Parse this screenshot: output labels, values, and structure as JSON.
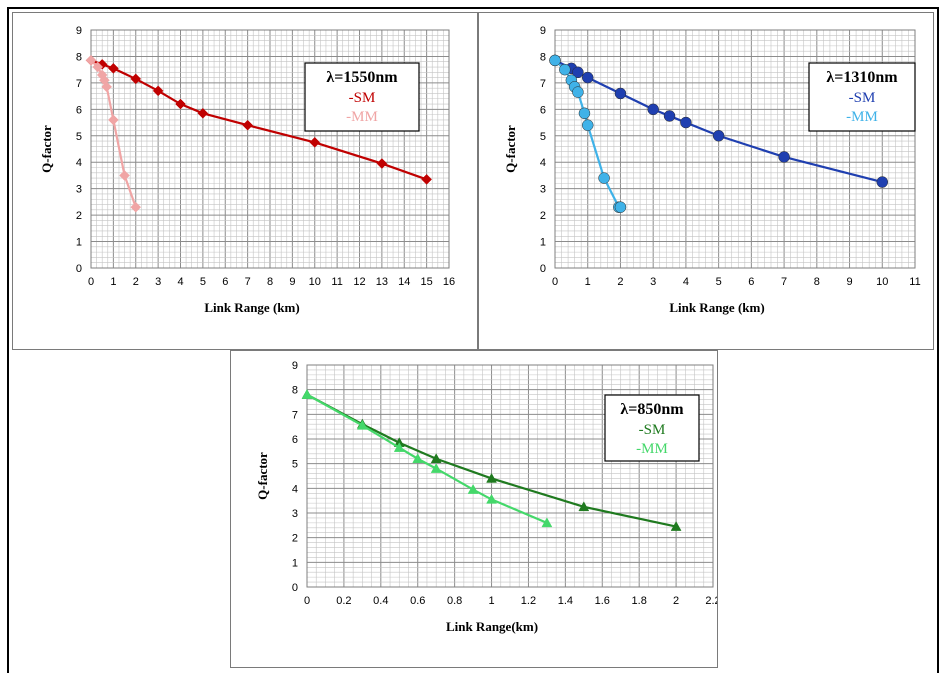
{
  "chart_data": [
    {
      "type": "line",
      "title": "",
      "xlabel": "Link Range (km)",
      "ylabel": "Q-factor",
      "xlim": [
        0,
        16
      ],
      "ylim": [
        0,
        9
      ],
      "xticks": [
        0,
        1,
        2,
        3,
        4,
        5,
        6,
        7,
        8,
        9,
        10,
        11,
        12,
        13,
        14,
        15,
        16
      ],
      "yticks": [
        0,
        1,
        2,
        3,
        4,
        5,
        6,
        7,
        8,
        9
      ],
      "grid": true,
      "legend": {
        "title": "λ=1550nm",
        "position": "top-right",
        "items": [
          "-SM",
          "-MM"
        ]
      },
      "series": [
        {
          "name": "-SM",
          "color": "#c00000",
          "marker": "diamond",
          "x": [
            0,
            0.5,
            1,
            2,
            3,
            4,
            5,
            7,
            10,
            13,
            15
          ],
          "y": [
            7.85,
            7.7,
            7.55,
            7.15,
            6.7,
            6.2,
            5.85,
            5.4,
            4.75,
            3.95,
            3.35
          ]
        },
        {
          "name": "-MM",
          "color": "#f0a5a5",
          "marker": "diamond",
          "x": [
            0,
            0.3,
            0.5,
            0.6,
            0.7,
            1,
            1.5,
            2
          ],
          "y": [
            7.85,
            7.6,
            7.3,
            7.1,
            6.85,
            5.6,
            3.5,
            2.3
          ]
        }
      ]
    },
    {
      "type": "line",
      "title": "",
      "xlabel": "Link Range (km)",
      "ylabel": "Q-factor",
      "xlim": [
        0,
        11
      ],
      "ylim": [
        0,
        9
      ],
      "xticks": [
        0,
        1,
        2,
        3,
        4,
        5,
        6,
        7,
        8,
        9,
        10,
        11
      ],
      "yticks": [
        0,
        1,
        2,
        3,
        4,
        5,
        6,
        7,
        8,
        9
      ],
      "grid": true,
      "legend": {
        "title": "λ=1310nm",
        "position": "top-right",
        "items": [
          "-SM",
          "-MM"
        ]
      },
      "series": [
        {
          "name": "-SM",
          "color": "#1f3fb0",
          "marker": "circle",
          "x": [
            0,
            0.5,
            0.7,
            1,
            2,
            3,
            3.5,
            4,
            5,
            7,
            10
          ],
          "y": [
            7.85,
            7.55,
            7.4,
            7.2,
            6.6,
            6.0,
            5.75,
            5.5,
            5.0,
            4.2,
            3.25
          ]
        },
        {
          "name": "-MM",
          "color": "#3fb2e8",
          "marker": "circle",
          "x": [
            0,
            0.3,
            0.5,
            0.6,
            0.7,
            0.9,
            1,
            1.5,
            1.95,
            2
          ],
          "y": [
            7.85,
            7.5,
            7.1,
            6.85,
            6.65,
            5.85,
            5.4,
            3.4,
            2.3,
            2.3
          ]
        }
      ]
    },
    {
      "type": "line",
      "title": "",
      "xlabel": "Link Range(km)",
      "ylabel": "Q-factor",
      "xlim": [
        0,
        2.2
      ],
      "ylim": [
        0,
        9
      ],
      "xticks": [
        "0",
        "0.2",
        "0.4",
        "0.6",
        "0.8",
        "1",
        "1.2",
        "1.4",
        "1.6",
        "1.8",
        "2",
        "2.2"
      ],
      "yticks": [
        0,
        1,
        2,
        3,
        4,
        5,
        6,
        7,
        8,
        9
      ],
      "grid": true,
      "legend": {
        "title": "λ=850nm",
        "position": "top-right",
        "items": [
          "-SM",
          "-MM"
        ]
      },
      "series": [
        {
          "name": "-SM",
          "color": "#1f7a1f",
          "marker": "triangle",
          "x": [
            0,
            0.3,
            0.5,
            0.7,
            1,
            1.5,
            2
          ],
          "y": [
            7.8,
            6.6,
            5.85,
            5.2,
            4.4,
            3.25,
            2.45
          ]
        },
        {
          "name": "-MM",
          "color": "#44d86a",
          "marker": "triangle",
          "x": [
            0,
            0.3,
            0.5,
            0.6,
            0.7,
            0.9,
            1,
            1.3
          ],
          "y": [
            7.8,
            6.55,
            5.65,
            5.2,
            4.8,
            3.95,
            3.55,
            2.6
          ]
        }
      ]
    }
  ]
}
